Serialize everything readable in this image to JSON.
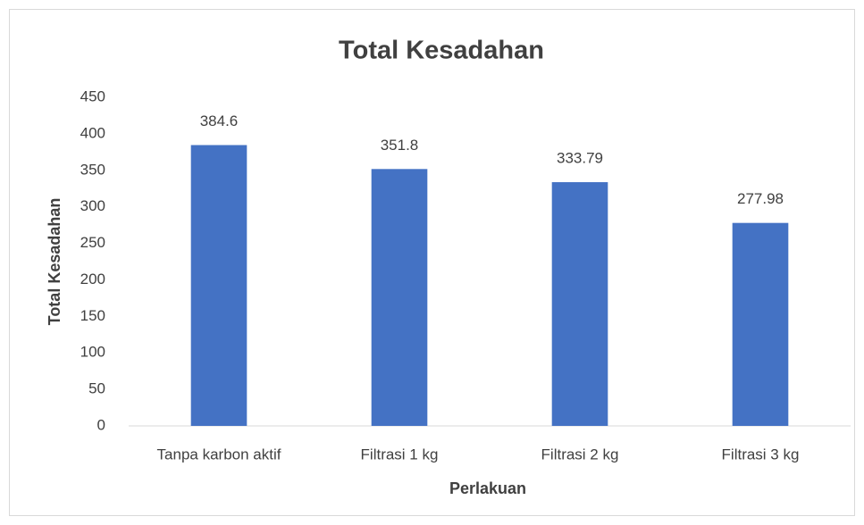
{
  "chart_data": {
    "type": "bar",
    "title": "Total Kesadahan",
    "x_label": "Perlakuan",
    "y_label": "Total Kesadahan",
    "categories": [
      "Tanpa karbon aktif",
      "Filtrasi 1 kg",
      "Filtrasi 2 kg",
      "Filtrasi 3 kg"
    ],
    "values": [
      384.6,
      351.8,
      333.79,
      277.98
    ],
    "color": "#4472c4",
    "ylim": [
      0,
      450
    ],
    "yticks": [
      0,
      50,
      100,
      150,
      200,
      250,
      300,
      350,
      400,
      450
    ],
    "grid": false
  }
}
